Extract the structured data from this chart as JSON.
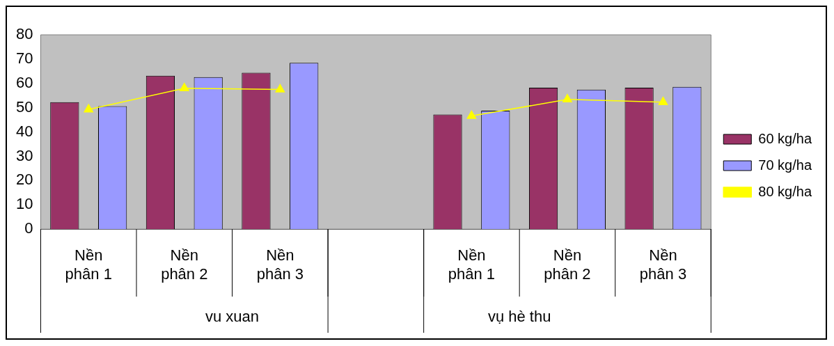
{
  "chart_data": {
    "type": "bar",
    "categories": [
      "Nền phân 1",
      "Nền phân 2",
      "Nền phân 3",
      null,
      "Nền phân 1",
      "Nền phân 2",
      "Nền phân 3"
    ],
    "series": [
      {
        "name": "60 kg/ha",
        "color": "#993366",
        "values": [
          52.3,
          63.2,
          64.4,
          null,
          47.2,
          58.2,
          58.2
        ]
      },
      {
        "name": "70 kg/ha",
        "color": "#9999ff",
        "values": [
          50.6,
          62.6,
          68.5,
          null,
          48.8,
          57.4,
          58.6
        ]
      },
      {
        "name": "80 kg/ha",
        "color": "#ffff00",
        "type": "line",
        "values": [
          49.3,
          58,
          57.5,
          null,
          46.6,
          53.4,
          52.3
        ]
      }
    ],
    "annotations": [
      "vu xuan",
      "vụ hè thu"
    ],
    "ylim": [
      0,
      80
    ],
    "yticks": [
      0,
      10,
      20,
      30,
      40,
      50,
      60,
      70,
      80
    ],
    "grid": false,
    "legend": "right",
    "marker": "triangle"
  }
}
